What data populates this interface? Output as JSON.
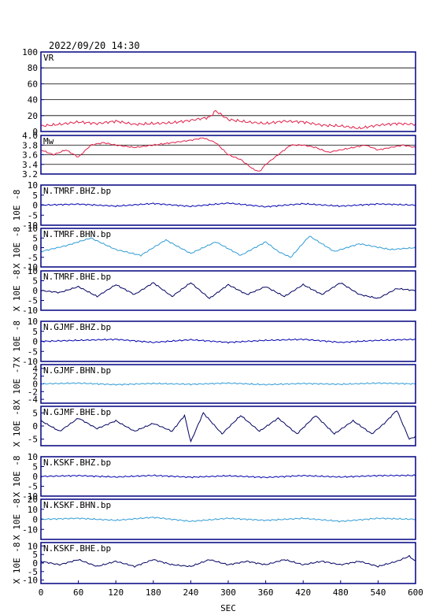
{
  "header": {
    "datetime": "2022/09/20 14:30"
  },
  "colors": {
    "frame": "#000080",
    "grid": "#000000",
    "vr": "#e0204a",
    "mw": "#e0204a",
    "bhz": "#0000b0",
    "bhn": "#2f9bd6",
    "bhe": "#000060"
  },
  "chart_data": [
    {
      "type": "line",
      "panel_label": "VR",
      "ylim": [
        0,
        100
      ],
      "yticks": [
        "100",
        "80",
        "60",
        "40",
        "20",
        "0"
      ],
      "grid": true,
      "color_key": "vr",
      "series": [
        {
          "x": [
            0,
            30,
            60,
            90,
            120,
            150,
            180,
            210,
            240,
            270,
            280,
            300,
            330,
            360,
            390,
            420,
            450,
            480,
            510,
            540,
            570,
            600
          ],
          "values": [
            7,
            9,
            12,
            10,
            13,
            9,
            10,
            11,
            14,
            18,
            26,
            15,
            12,
            10,
            13,
            12,
            8,
            7,
            4,
            8,
            10,
            9
          ]
        }
      ]
    },
    {
      "type": "line",
      "panel_label": "Mw",
      "ylim": [
        3.2,
        4.0
      ],
      "yticks": [
        "4.0",
        "3.8",
        "3.6",
        "3.4",
        "3.2"
      ],
      "grid": true,
      "color_key": "mw",
      "series": [
        {
          "x": [
            0,
            20,
            40,
            60,
            80,
            100,
            120,
            150,
            180,
            210,
            240,
            260,
            280,
            300,
            320,
            340,
            350,
            360,
            380,
            400,
            420,
            440,
            460,
            480,
            500,
            520,
            540,
            560,
            580,
            600
          ],
          "values": [
            3.7,
            3.6,
            3.7,
            3.55,
            3.8,
            3.85,
            3.8,
            3.75,
            3.8,
            3.85,
            3.9,
            3.95,
            3.85,
            3.6,
            3.5,
            3.3,
            3.25,
            3.4,
            3.6,
            3.8,
            3.8,
            3.75,
            3.65,
            3.7,
            3.75,
            3.8,
            3.7,
            3.75,
            3.8,
            3.75
          ]
        }
      ]
    },
    {
      "type": "line",
      "panel_label": "N.TMRF.BHZ.bp",
      "ylabel": "10E -8",
      "ylim": [
        -10,
        10
      ],
      "yticks": [
        "10",
        "5",
        "0",
        "-5",
        "-10"
      ],
      "color_key": "bhz",
      "series": [
        {
          "x": [
            0,
            60,
            120,
            180,
            240,
            300,
            360,
            420,
            480,
            540,
            600
          ],
          "values": [
            0,
            0.5,
            -0.5,
            0.8,
            -0.6,
            1,
            -0.8,
            0.7,
            -0.5,
            0.6,
            0
          ]
        }
      ]
    },
    {
      "type": "line",
      "panel_label": "N.TMRF.BHN.bp",
      "ylabel": "X 10E -8",
      "ylim": [
        -10,
        10
      ],
      "yticks": [
        "10",
        "5",
        "0",
        "-5",
        "-10"
      ],
      "color_key": "bhn",
      "series": [
        {
          "x": [
            0,
            40,
            80,
            120,
            160,
            200,
            240,
            280,
            320,
            360,
            380,
            400,
            430,
            470,
            510,
            560,
            600
          ],
          "values": [
            -2,
            1,
            5,
            -1,
            -4,
            4,
            -3,
            3,
            -4,
            3,
            -2,
            -5,
            6,
            -2,
            2,
            -1,
            0
          ]
        }
      ]
    },
    {
      "type": "line",
      "panel_label": "N.TMRF.BHE.bp",
      "ylabel": "X 10E -8",
      "ylim": [
        -10,
        10
      ],
      "yticks": [
        "10",
        "5",
        "0",
        "-5",
        "-10"
      ],
      "color_key": "bhe",
      "series": [
        {
          "x": [
            0,
            30,
            60,
            90,
            120,
            150,
            180,
            210,
            240,
            270,
            300,
            330,
            360,
            390,
            420,
            450,
            480,
            510,
            540,
            570,
            600
          ],
          "values": [
            0,
            -1,
            2,
            -3,
            3,
            -2,
            4,
            -3,
            4,
            -4,
            3,
            -2,
            2,
            -3,
            3,
            -2,
            4,
            -2,
            -4,
            1,
            0
          ]
        }
      ]
    },
    {
      "type": "line",
      "panel_label": "N.GJMF.BHZ.bp",
      "ylabel": "X 10E -8",
      "ylim": [
        -10,
        10
      ],
      "yticks": [
        "10",
        "5",
        "0",
        "-5",
        "-10"
      ],
      "color_key": "bhz",
      "series": [
        {
          "x": [
            0,
            60,
            120,
            180,
            240,
            300,
            360,
            420,
            480,
            540,
            600
          ],
          "values": [
            0,
            0.5,
            1,
            -0.5,
            0.8,
            -0.5,
            0.5,
            1,
            -0.5,
            0.5,
            1
          ]
        }
      ]
    },
    {
      "type": "line",
      "panel_label": "N.GJMF.BHN.bp",
      "ylabel": "X 10E -7",
      "ylim": [
        -5,
        5
      ],
      "yticks": [
        "4",
        "2",
        "0",
        "-2",
        "-4"
      ],
      "color_key": "bhn",
      "series": [
        {
          "x": [
            0,
            60,
            120,
            180,
            240,
            300,
            360,
            420,
            480,
            540,
            600
          ],
          "values": [
            0,
            0.2,
            -0.2,
            0.1,
            -0.1,
            0.2,
            -0.2,
            0.1,
            -0.1,
            0.2,
            0
          ]
        }
      ]
    },
    {
      "type": "line",
      "panel_label": "N.GJMF.BHE.bp",
      "ylabel": "X 10E -8",
      "ylim": [
        -7.5,
        7.5
      ],
      "yticks": [
        "5",
        "0",
        "-5"
      ],
      "color_key": "bhe",
      "series": [
        {
          "x": [
            0,
            30,
            60,
            90,
            120,
            150,
            180,
            210,
            230,
            240,
            260,
            290,
            320,
            350,
            380,
            410,
            440,
            470,
            500,
            530,
            550,
            570,
            590,
            600
          ],
          "values": [
            2,
            -2,
            3,
            -1,
            2,
            -2,
            1,
            -2,
            4,
            -6,
            5,
            -3,
            4,
            -2,
            3,
            -3,
            4,
            -3,
            2,
            -3,
            1,
            6,
            -5,
            -4
          ]
        }
      ]
    },
    {
      "type": "line",
      "panel_label": "N.KSKF.BHZ.bp",
      "ylabel": "X 10E -8",
      "ylim": [
        -10,
        10
      ],
      "yticks": [
        "10",
        "5",
        "0",
        "-5",
        "-10"
      ],
      "color_key": "bhz",
      "series": [
        {
          "x": [
            0,
            60,
            120,
            180,
            240,
            300,
            360,
            420,
            480,
            540,
            600
          ],
          "values": [
            0,
            0.4,
            -0.3,
            0.5,
            -0.4,
            0.3,
            -0.5,
            0.4,
            -0.3,
            0.4,
            0.5
          ]
        }
      ]
    },
    {
      "type": "line",
      "panel_label": "N.KSKF.BHN.bp",
      "ylabel": "X 10E -8",
      "ylim": [
        -20,
        20
      ],
      "yticks": [
        "20",
        "10",
        "0",
        "-10"
      ],
      "color_key": "bhn",
      "series": [
        {
          "x": [
            0,
            60,
            120,
            180,
            240,
            300,
            360,
            420,
            480,
            540,
            600
          ],
          "values": [
            0,
            1,
            -1,
            2,
            -2,
            1,
            -1,
            1,
            -2,
            1,
            0
          ]
        }
      ]
    },
    {
      "type": "line",
      "panel_label": "N.KSKF.BHE.bp",
      "ylabel": "X 10E -8",
      "ylim": [
        -12,
        12
      ],
      "yticks": [
        "10",
        "5",
        "0",
        "-5",
        "-10"
      ],
      "color_key": "bhe",
      "series": [
        {
          "x": [
            0,
            30,
            60,
            90,
            120,
            150,
            180,
            210,
            240,
            270,
            300,
            330,
            360,
            390,
            420,
            450,
            480,
            510,
            540,
            570,
            590,
            600
          ],
          "values": [
            1,
            -1,
            2,
            -2,
            1,
            -2,
            2,
            -1,
            -2,
            2,
            -1,
            1,
            -1,
            2,
            -1,
            1,
            -1,
            1,
            -2,
            1,
            4,
            1
          ]
        }
      ]
    }
  ],
  "xaxis": {
    "xlim": [
      0,
      600
    ],
    "ticks": [
      0,
      60,
      120,
      180,
      240,
      300,
      360,
      420,
      480,
      540,
      600
    ],
    "tick_labels": [
      "0",
      "60",
      "120",
      "180",
      "240",
      "300",
      "360",
      "420",
      "480",
      "540",
      "600"
    ],
    "xlabel": "SEC"
  }
}
